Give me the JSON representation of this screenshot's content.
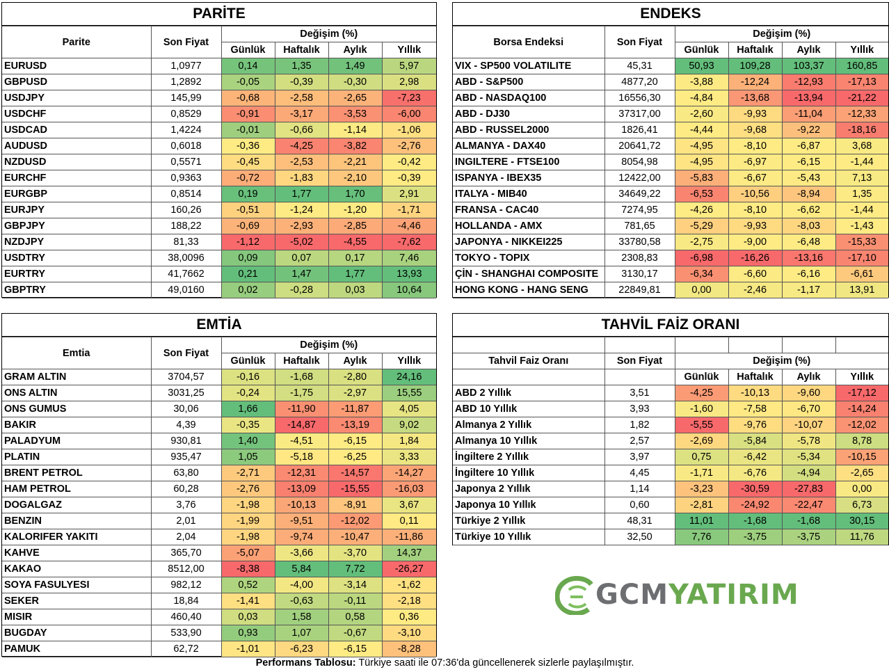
{
  "headers": {
    "change": "Değişim (%)",
    "periods": [
      "Günlük",
      "Haftalık",
      "Aylık",
      "Yıllık"
    ],
    "price": "Son Fiyat"
  },
  "parite": {
    "title": "PARİTE",
    "name_header": "Parite",
    "rows": [
      {
        "name": "EURUSD",
        "price": "1,0977",
        "d": "0,14",
        "w": "1,35",
        "m": "1,49",
        "y": "5,97"
      },
      {
        "name": "GBPUSD",
        "price": "1,2892",
        "d": "-0,05",
        "w": "-0,39",
        "m": "-0,30",
        "y": "2,98"
      },
      {
        "name": "USDJPY",
        "price": "145,99",
        "d": "-0,68",
        "w": "-2,58",
        "m": "-2,65",
        "y": "-7,23"
      },
      {
        "name": "USDCHF",
        "price": "0,8529",
        "d": "-0,91",
        "w": "-3,17",
        "m": "-3,53",
        "y": "-6,00"
      },
      {
        "name": "USDCAD",
        "price": "1,4224",
        "d": "-0,01",
        "w": "-0,66",
        "m": "-1,14",
        "y": "-1,06"
      },
      {
        "name": "AUDUSD",
        "price": "0,6018",
        "d": "-0,36",
        "w": "-4,25",
        "m": "-3,82",
        "y": "-2,76"
      },
      {
        "name": "NZDUSD",
        "price": "0,5571",
        "d": "-0,45",
        "w": "-2,53",
        "m": "-2,21",
        "y": "-0,42"
      },
      {
        "name": "EURCHF",
        "price": "0,9363",
        "d": "-0,72",
        "w": "-1,83",
        "m": "-2,10",
        "y": "-0,39"
      },
      {
        "name": "EURGBP",
        "price": "0,8514",
        "d": "0,19",
        "w": "1,77",
        "m": "1,70",
        "y": "2,91"
      },
      {
        "name": "EURJPY",
        "price": "160,26",
        "d": "-0,51",
        "w": "-1,24",
        "m": "-1,20",
        "y": "-1,71"
      },
      {
        "name": "GBPJPY",
        "price": "188,22",
        "d": "-0,69",
        "w": "-2,93",
        "m": "-2,85",
        "y": "-4,46"
      },
      {
        "name": "NZDJPY",
        "price": "81,33",
        "d": "-1,12",
        "w": "-5,02",
        "m": "-4,55",
        "y": "-7,62"
      },
      {
        "name": "USDTRY",
        "price": "38,0096",
        "d": "0,09",
        "w": "0,07",
        "m": "0,17",
        "y": "7,46"
      },
      {
        "name": "EURTRY",
        "price": "41,7662",
        "d": "0,21",
        "w": "1,47",
        "m": "1,77",
        "y": "13,93"
      },
      {
        "name": "GBPTRY",
        "price": "49,0160",
        "d": "0,02",
        "w": "-0,28",
        "m": "0,03",
        "y": "10,64"
      }
    ]
  },
  "endeks": {
    "title": "ENDEKS",
    "name_header": "Borsa Endeksi",
    "rows": [
      {
        "name": "VIX  - SP500 VOLATILITE",
        "price": "45,31",
        "d": "50,93",
        "w": "109,28",
        "m": "103,37",
        "y": "160,85"
      },
      {
        "name": "ABD - S&P500",
        "price": "4877,20",
        "d": "-3,88",
        "w": "-12,24",
        "m": "-12,93",
        "y": "-17,13"
      },
      {
        "name": "ABD - NASDAQ100",
        "price": "16556,30",
        "d": "-4,84",
        "w": "-13,68",
        "m": "-13,94",
        "y": "-21,22"
      },
      {
        "name": "ABD - DJ30",
        "price": "37317,00",
        "d": "-2,60",
        "w": "-9,93",
        "m": "-11,04",
        "y": "-12,33"
      },
      {
        "name": "ABD - RUSSEL2000",
        "price": "1826,41",
        "d": "-4,44",
        "w": "-9,68",
        "m": "-9,22",
        "y": "-18,16"
      },
      {
        "name": "ALMANYA - DAX40",
        "price": "20641,72",
        "d": "-4,95",
        "w": "-8,10",
        "m": "-6,87",
        "y": "3,68"
      },
      {
        "name": "INGILTERE - FTSE100",
        "price": "8054,98",
        "d": "-4,95",
        "w": "-6,97",
        "m": "-6,15",
        "y": "-1,44"
      },
      {
        "name": "ISPANYA - IBEX35",
        "price": "12422,00",
        "d": "-5,83",
        "w": "-6,67",
        "m": "-5,43",
        "y": "7,13"
      },
      {
        "name": "ITALYA - MIB40",
        "price": "34649,22",
        "d": "-6,53",
        "w": "-10,56",
        "m": "-8,94",
        "y": "1,35"
      },
      {
        "name": "FRANSA - CAC40",
        "price": "7274,95",
        "d": "-4,26",
        "w": "-8,10",
        "m": "-6,62",
        "y": "-1,44"
      },
      {
        "name": "HOLLANDA - AMX",
        "price": "781,65",
        "d": "-5,29",
        "w": "-9,93",
        "m": "-8,03",
        "y": "-1,43"
      },
      {
        "name": "JAPONYA - NIKKEI225",
        "price": "33780,58",
        "d": "-2,75",
        "w": "-9,00",
        "m": "-6,48",
        "y": "-15,33"
      },
      {
        "name": "TOKYO - TOPIX",
        "price": "2308,83",
        "d": "-6,98",
        "w": "-16,26",
        "m": "-13,16",
        "y": "-17,10"
      },
      {
        "name": "ÇİN - SHANGHAI COMPOSITE",
        "price": "3130,17",
        "d": "-6,34",
        "w": "-6,60",
        "m": "-6,16",
        "y": "-6,61"
      },
      {
        "name": "HONG KONG - HANG SENG",
        "price": "22849,81",
        "d": "0,00",
        "w": "-2,46",
        "m": "-1,17",
        "y": "13,91"
      }
    ]
  },
  "emtia": {
    "title": "EMTİA",
    "name_header": "Emtia",
    "rows": [
      {
        "name": "GRAM ALTIN",
        "price": "3704,57",
        "d": "-0,16",
        "w": "-1,68",
        "m": "-2,80",
        "y": "24,16"
      },
      {
        "name": "ONS ALTIN",
        "price": "3031,25",
        "d": "-0,24",
        "w": "-1,75",
        "m": "-2,97",
        "y": "15,55"
      },
      {
        "name": "ONS GUMUS",
        "price": "30,06",
        "d": "1,66",
        "w": "-11,90",
        "m": "-11,87",
        "y": "4,05"
      },
      {
        "name": "BAKIR",
        "price": "4,39",
        "d": "-0,35",
        "w": "-14,87",
        "m": "-13,19",
        "y": "9,02"
      },
      {
        "name": "PALADYUM",
        "price": "930,81",
        "d": "1,40",
        "w": "-4,51",
        "m": "-6,15",
        "y": "1,84"
      },
      {
        "name": "PLATIN",
        "price": "935,47",
        "d": "1,05",
        "w": "-5,18",
        "m": "-6,25",
        "y": "3,33"
      },
      {
        "name": "BRENT PETROL",
        "price": "63,80",
        "d": "-2,71",
        "w": "-12,31",
        "m": "-14,57",
        "y": "-14,27"
      },
      {
        "name": "HAM PETROL",
        "price": "60,28",
        "d": "-2,76",
        "w": "-13,09",
        "m": "-15,55",
        "y": "-16,03"
      },
      {
        "name": "DOGALGAZ",
        "price": "3,76",
        "d": "-1,98",
        "w": "-10,13",
        "m": "-8,91",
        "y": "3,67"
      },
      {
        "name": "BENZIN",
        "price": "2,01",
        "d": "-1,99",
        "w": "-9,51",
        "m": "-12,02",
        "y": "0,11"
      },
      {
        "name": "KALORIFER YAKITI",
        "price": "2,04",
        "d": "-1,98",
        "w": "-9,74",
        "m": "-10,47",
        "y": "-11,86"
      },
      {
        "name": "KAHVE",
        "price": "365,70",
        "d": "-5,07",
        "w": "-3,66",
        "m": "-3,70",
        "y": "14,37"
      },
      {
        "name": "KAKAO",
        "price": "8512,00",
        "d": "-8,38",
        "w": "5,84",
        "m": "7,72",
        "y": "-26,27"
      },
      {
        "name": "SOYA FASULYESI",
        "price": "982,12",
        "d": "0,52",
        "w": "-4,00",
        "m": "-3,14",
        "y": "-1,62"
      },
      {
        "name": "SEKER",
        "price": "18,84",
        "d": "-1,41",
        "w": "-0,63",
        "m": "-0,11",
        "y": "-2,18"
      },
      {
        "name": "MISIR",
        "price": "460,40",
        "d": "0,03",
        "w": "1,58",
        "m": "0,58",
        "y": "0,36"
      },
      {
        "name": "BUGDAY",
        "price": "533,90",
        "d": "0,93",
        "w": "1,07",
        "m": "-0,67",
        "y": "-3,10"
      },
      {
        "name": "PAMUK",
        "price": "62,72",
        "d": "-1,01",
        "w": "-6,23",
        "m": "-6,15",
        "y": "-8,28"
      }
    ]
  },
  "tahvil": {
    "title": "TAHVİL FAİZ ORANI",
    "name_header": "Tahvil Faiz Oranı",
    "rows": [
      {
        "name": "ABD 2 Yıllık",
        "price": "3,51",
        "d": "-4,25",
        "w": "-10,13",
        "m": "-9,60",
        "y": "-17,12"
      },
      {
        "name": "ABD 10 Yıllık",
        "price": "3,93",
        "d": "-1,60",
        "w": "-7,58",
        "m": "-6,70",
        "y": "-14,24"
      },
      {
        "name": "Almanya 2 Yıllık",
        "price": "1,82",
        "d": "-5,55",
        "w": "-9,76",
        "m": "-10,07",
        "y": "-12,02"
      },
      {
        "name": "Almanya 10 Yıllık",
        "price": "2,57",
        "d": "-2,69",
        "w": "-5,84",
        "m": "-5,78",
        "y": "8,78"
      },
      {
        "name": "İngiltere 2 Yıllık",
        "price": "3,97",
        "d": "0,75",
        "w": "-6,42",
        "m": "-5,34",
        "y": "-10,15"
      },
      {
        "name": "İngiltere 10 Yıllık",
        "price": "4,45",
        "d": "-1,71",
        "w": "-6,76",
        "m": "-4,94",
        "y": "-2,65"
      },
      {
        "name": "Japonya 2 Yıllık",
        "price": "1,14",
        "d": "-3,23",
        "w": "-30,59",
        "m": "-27,83",
        "y": "0,00"
      },
      {
        "name": "Japonya 10 Yıllık",
        "price": "0,60",
        "d": "-2,81",
        "w": "-24,92",
        "m": "-22,47",
        "y": "6,73"
      },
      {
        "name": "Türkiye 2 Yıllık",
        "price": "48,31",
        "d": "11,01",
        "w": "-1,68",
        "m": "-1,68",
        "y": "30,15"
      },
      {
        "name": "Türkiye 10 Yıllık",
        "price": "32,50",
        "d": "7,76",
        "w": "-3,75",
        "m": "-3,75",
        "y": "11,76"
      }
    ]
  },
  "footer": {
    "bold": "Performans Tablosu:",
    "text": " Türkiye saati ile 07:36'da güncellenerek sizlerle paylaşılmıştır."
  },
  "logo": {
    "part1": "GCM",
    "part2": "YATIRIM"
  },
  "scale_colors": {
    "low": "#f8696b",
    "mid": "#ffeb84",
    "high": "#63be7b"
  }
}
